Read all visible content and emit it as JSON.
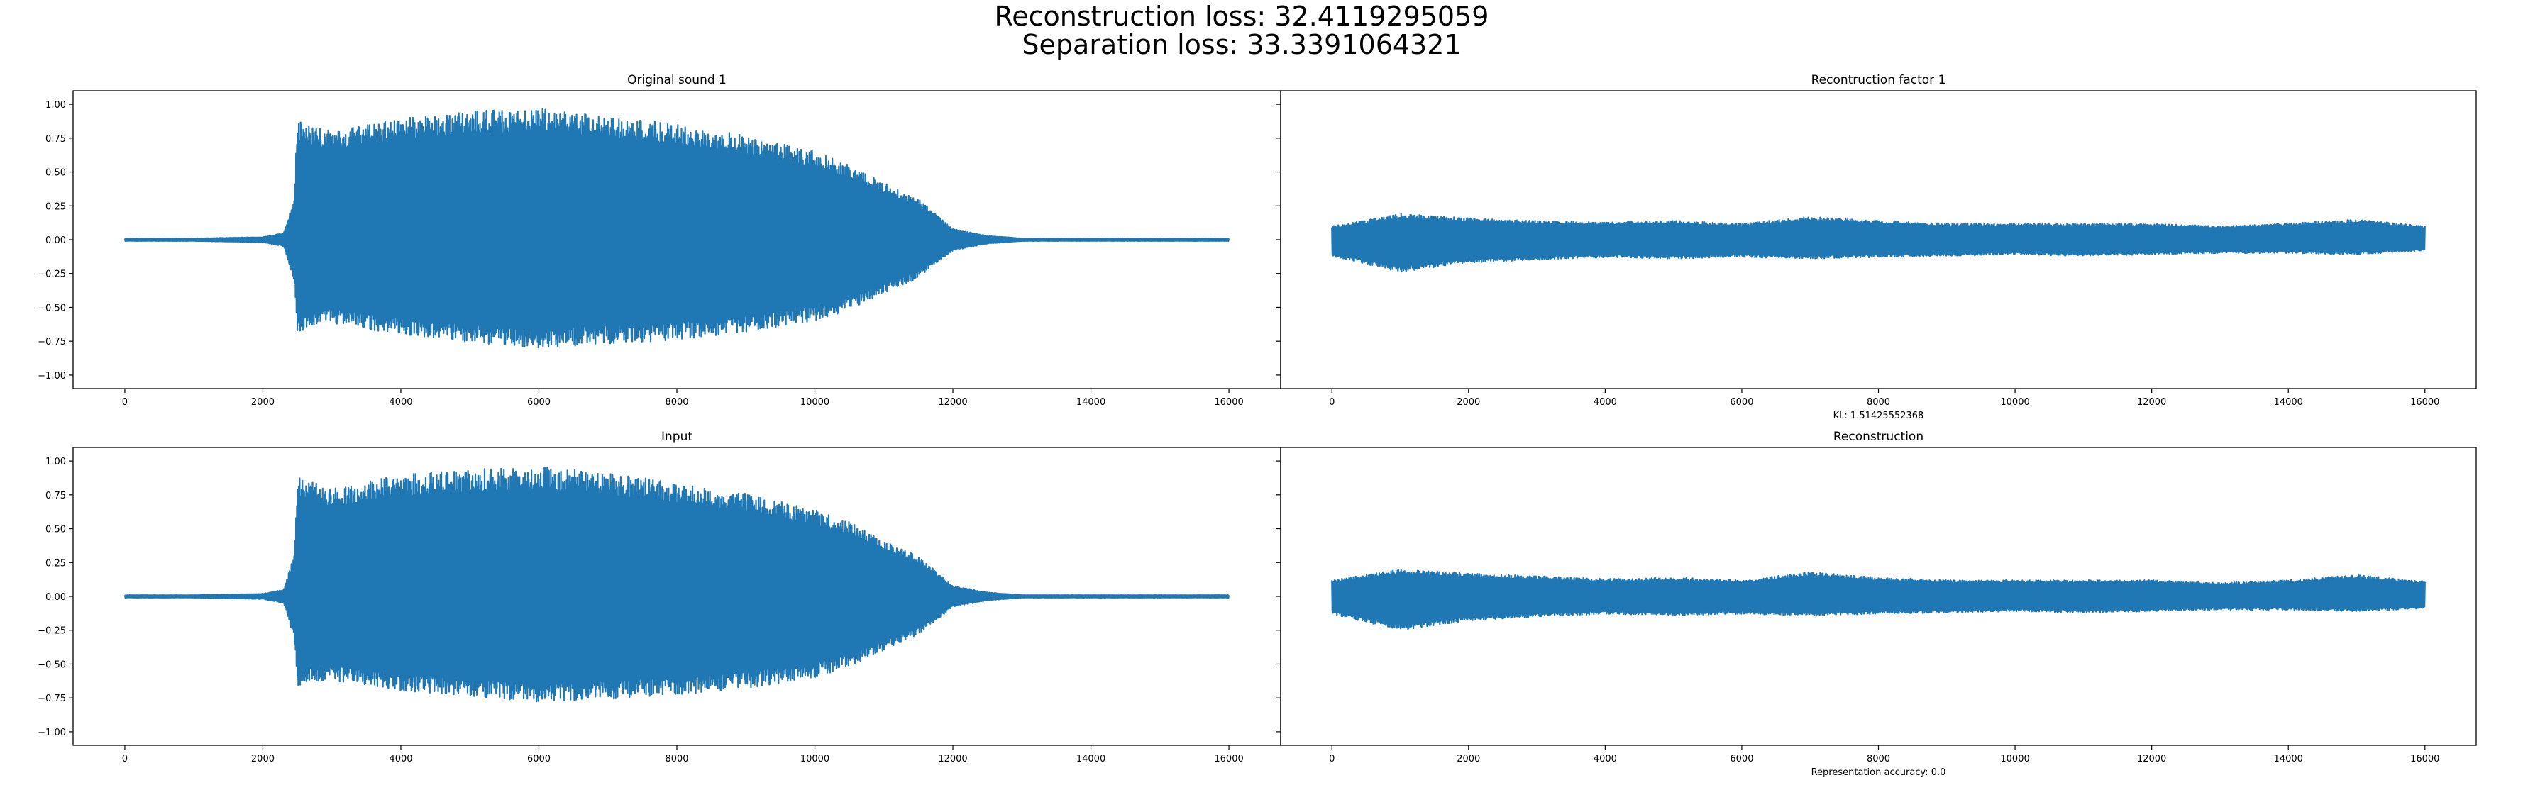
{
  "figure": {
    "suptitle_line1": "Reconstruction loss: 32.4119295059",
    "suptitle_line2": "Separation loss: 33.3391064321"
  },
  "colors": {
    "series": "#1f77b4",
    "frame": "#000000",
    "background": "#ffffff"
  },
  "chart_data": [
    {
      "type": "line",
      "title": "Original sound 1",
      "xlabel": "",
      "ylabel": "",
      "xlim": [
        -750,
        16750
      ],
      "ylim": [
        -1.1,
        1.1
      ],
      "xticks": [
        0,
        2000,
        4000,
        6000,
        8000,
        10000,
        12000,
        14000,
        16000
      ],
      "yticks": [
        -1.0,
        -0.75,
        -0.5,
        -0.25,
        0.0,
        0.25,
        0.5,
        0.75,
        1.0
      ],
      "ytick_labels": [
        "−1.00",
        "−0.75",
        "−0.50",
        "−0.25",
        "0.00",
        "0.25",
        "0.50",
        "0.75",
        "1.00"
      ],
      "grid": false,
      "series": [
        {
          "x": [
            0,
            1000,
            2000,
            2300,
            2450,
            2500,
            3000,
            4000,
            5000,
            6000,
            7000,
            8000,
            9000,
            10000,
            10500,
            11000,
            11500,
            12000,
            12500,
            13000,
            14000,
            15000,
            16000
          ],
          "upper": [
            0.01,
            0.01,
            0.02,
            0.05,
            0.3,
            0.88,
            0.8,
            0.9,
            0.95,
            0.97,
            0.92,
            0.85,
            0.77,
            0.65,
            0.55,
            0.42,
            0.3,
            0.08,
            0.03,
            0.01,
            0.01,
            0.01,
            0.01
          ],
          "lower": [
            -0.01,
            -0.01,
            -0.02,
            -0.05,
            -0.3,
            -0.68,
            -0.62,
            -0.7,
            -0.76,
            -0.8,
            -0.77,
            -0.74,
            -0.68,
            -0.6,
            -0.52,
            -0.4,
            -0.28,
            -0.08,
            -0.03,
            -0.01,
            -0.01,
            -0.01,
            -0.01
          ]
        }
      ]
    },
    {
      "type": "line",
      "title": "Recontruction factor 1",
      "xlabel": "KL: 1.51425552368",
      "ylabel": "",
      "xlim": [
        -750,
        16750
      ],
      "ylim": [
        -1.1,
        1.1
      ],
      "xticks": [
        0,
        2000,
        4000,
        6000,
        8000,
        10000,
        12000,
        14000,
        16000
      ],
      "yticks": [
        -1.0,
        -0.75,
        -0.5,
        -0.25,
        0.0,
        0.25,
        0.5,
        0.75,
        1.0
      ],
      "ytick_labels": [
        "",
        "",
        "",
        "",
        "",
        "",
        "",
        "",
        ""
      ],
      "grid": false,
      "series": [
        {
          "x": [
            0,
            1000,
            2000,
            3000,
            4000,
            5000,
            6000,
            7000,
            8000,
            9000,
            10000,
            11000,
            12000,
            13000,
            14000,
            15000,
            16000
          ],
          "upper": [
            0.1,
            0.19,
            0.16,
            0.14,
            0.13,
            0.14,
            0.12,
            0.17,
            0.14,
            0.12,
            0.12,
            0.12,
            0.12,
            0.1,
            0.12,
            0.15,
            0.1
          ],
          "lower": [
            -0.12,
            -0.24,
            -0.17,
            -0.15,
            -0.13,
            -0.14,
            -0.13,
            -0.14,
            -0.13,
            -0.12,
            -0.11,
            -0.12,
            -0.11,
            -0.1,
            -0.1,
            -0.11,
            -0.08
          ]
        }
      ]
    },
    {
      "type": "line",
      "title": "Input",
      "xlabel": "",
      "ylabel": "",
      "xlim": [
        -750,
        16750
      ],
      "ylim": [
        -1.1,
        1.1
      ],
      "xticks": [
        0,
        2000,
        4000,
        6000,
        8000,
        10000,
        12000,
        14000,
        16000
      ],
      "yticks": [
        -1.0,
        -0.75,
        -0.5,
        -0.25,
        0.0,
        0.25,
        0.5,
        0.75,
        1.0
      ],
      "ytick_labels": [
        "−1.00",
        "−0.75",
        "−0.50",
        "−0.25",
        "0.00",
        "0.25",
        "0.50",
        "0.75",
        "1.00"
      ],
      "grid": false,
      "series": [
        {
          "x": [
            0,
            1000,
            2000,
            2300,
            2450,
            2500,
            3000,
            4000,
            5000,
            6000,
            7000,
            8000,
            9000,
            10000,
            10500,
            11000,
            11500,
            12000,
            12500,
            13000,
            14000,
            15000,
            16000
          ],
          "upper": [
            0.01,
            0.01,
            0.02,
            0.05,
            0.3,
            0.88,
            0.8,
            0.9,
            0.94,
            0.96,
            0.91,
            0.84,
            0.76,
            0.64,
            0.55,
            0.42,
            0.3,
            0.08,
            0.03,
            0.01,
            0.01,
            0.01,
            0.01
          ],
          "lower": [
            -0.01,
            -0.01,
            -0.02,
            -0.05,
            -0.3,
            -0.66,
            -0.62,
            -0.7,
            -0.74,
            -0.78,
            -0.76,
            -0.73,
            -0.68,
            -0.6,
            -0.52,
            -0.4,
            -0.28,
            -0.08,
            -0.03,
            -0.01,
            -0.01,
            -0.01,
            -0.01
          ]
        }
      ]
    },
    {
      "type": "line",
      "title": "Reconstruction",
      "xlabel": "Representation accuracy: 0.0",
      "ylabel": "",
      "xlim": [
        -750,
        16750
      ],
      "ylim": [
        -1.1,
        1.1
      ],
      "xticks": [
        0,
        2000,
        4000,
        6000,
        8000,
        10000,
        12000,
        14000,
        16000
      ],
      "yticks": [
        -1.0,
        -0.75,
        -0.5,
        -0.25,
        0.0,
        0.25,
        0.5,
        0.75,
        1.0
      ],
      "ytick_labels": [
        "",
        "",
        "",
        "",
        "",
        "",
        "",
        "",
        ""
      ],
      "grid": false,
      "series": [
        {
          "x": [
            0,
            1000,
            2000,
            3000,
            4000,
            5000,
            6000,
            7000,
            8000,
            9000,
            10000,
            11000,
            12000,
            13000,
            14000,
            15000,
            16000
          ],
          "upper": [
            0.12,
            0.2,
            0.17,
            0.15,
            0.13,
            0.14,
            0.12,
            0.18,
            0.14,
            0.12,
            0.12,
            0.12,
            0.12,
            0.1,
            0.12,
            0.16,
            0.11
          ],
          "lower": [
            -0.13,
            -0.25,
            -0.18,
            -0.15,
            -0.13,
            -0.14,
            -0.13,
            -0.14,
            -0.13,
            -0.12,
            -0.11,
            -0.12,
            -0.11,
            -0.1,
            -0.1,
            -0.11,
            -0.09
          ]
        }
      ]
    }
  ]
}
